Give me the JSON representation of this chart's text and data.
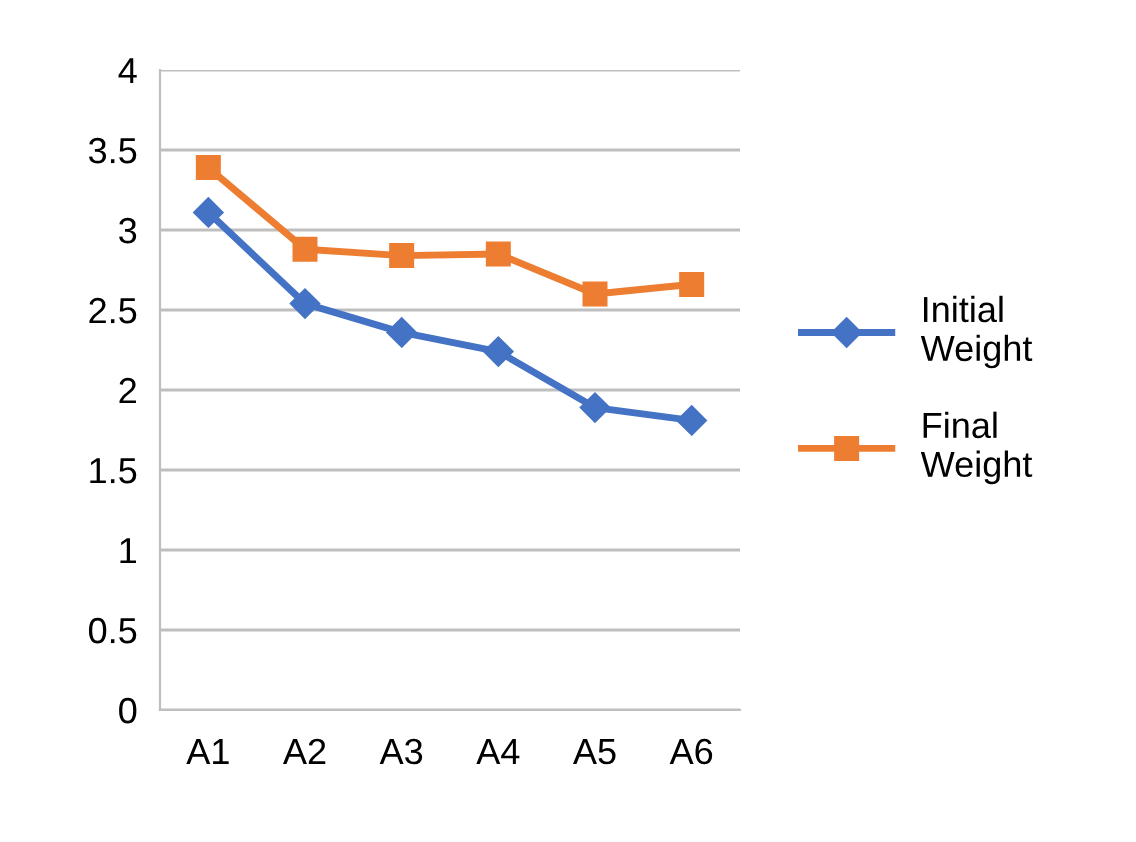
{
  "chart_data": {
    "type": "line",
    "categories": [
      "A1",
      "A2",
      "A3",
      "A4",
      "A5",
      "A6"
    ],
    "series": [
      {
        "name": "Initial Weight",
        "color": "#4472c4",
        "values": [
          3.11,
          2.54,
          2.36,
          2.24,
          1.89,
          1.81
        ],
        "marker": "diamond"
      },
      {
        "name": "Final Weight",
        "color": "#ed7d31",
        "values": [
          3.39,
          2.88,
          2.84,
          2.85,
          2.6,
          2.66
        ],
        "marker": "square"
      }
    ],
    "ylim": [
      0,
      4
    ],
    "yticks": [
      0,
      0.5,
      1,
      1.5,
      2,
      2.5,
      3,
      3.5,
      4
    ],
    "grid": "y",
    "legend": "right",
    "line_style": "solid"
  }
}
